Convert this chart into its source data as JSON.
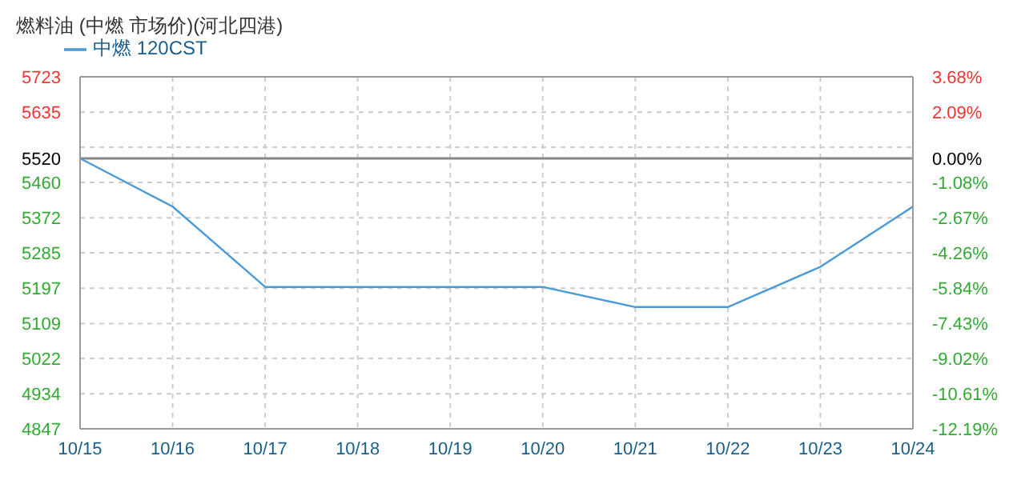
{
  "chart_data": {
    "type": "line",
    "title": "燃料油 (中燃 市场价)(河北四港)",
    "categories": [
      "10/15",
      "10/16",
      "10/17",
      "10/18",
      "10/19",
      "10/20",
      "10/21",
      "10/22",
      "10/23",
      "10/24"
    ],
    "series": [
      {
        "name": "中燃 120CST",
        "color": "#4a9ad8",
        "values": [
          5520,
          5400,
          5200,
          5200,
          5200,
          5200,
          5150,
          5150,
          5250,
          5400
        ]
      }
    ],
    "ylim": [
      4847,
      5723
    ],
    "yticks": [
      4847,
      4934,
      5022,
      5109,
      5197,
      5285,
      5372,
      5460,
      5520,
      {
        "value": 5548,
        "label": null
      },
      5635,
      5723
    ],
    "y2lim": [
      -12.19,
      3.68
    ],
    "y2ticks": [
      {
        "value": -12.19,
        "label": "-12.19%"
      },
      {
        "value": -10.61,
        "label": "-10.61%"
      },
      {
        "value": -9.02,
        "label": "-9.02%"
      },
      {
        "value": -7.43,
        "label": "-7.43%"
      },
      {
        "value": -5.84,
        "label": "-5.84%"
      },
      {
        "value": -4.26,
        "label": "-4.26%"
      },
      {
        "value": -2.67,
        "label": "-2.67%"
      },
      {
        "value": -1.08,
        "label": "-1.08%"
      },
      {
        "value": 0,
        "label": "0.00%"
      },
      {
        "value": 0.5,
        "label": null
      },
      {
        "value": 2.09,
        "label": "2.09%"
      },
      {
        "value": 3.68,
        "label": "3.68%"
      }
    ],
    "ref_lines": [
      {
        "axis": "y",
        "value": 5520,
        "color": "#888888"
      }
    ],
    "grid": true,
    "legend": "top left",
    "marker": "none",
    "line_style": "solid"
  }
}
